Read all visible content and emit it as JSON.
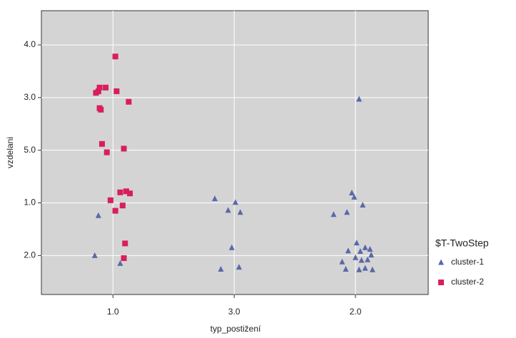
{
  "chart_data": {
    "type": "scatter",
    "x_label": "typ_postižení",
    "y_label": "vzdelani",
    "legend_title": "$T-TwoStep",
    "legend_position": "right",
    "grid": true,
    "xlim": [
      0.41,
      3.6
    ],
    "xticks": [
      {
        "value": 1,
        "label": "1.0"
      },
      {
        "value": 2,
        "label": "3.0"
      },
      {
        "value": 3,
        "label": "2.0"
      }
    ],
    "ylim": [
      0.26,
      5.65
    ],
    "yticks": [
      {
        "value": 1,
        "label": "2.0"
      },
      {
        "value": 2,
        "label": "1.0"
      },
      {
        "value": 3,
        "label": "5.0"
      },
      {
        "value": 4,
        "label": "3.0"
      },
      {
        "value": 5,
        "label": "4.0"
      }
    ],
    "series": [
      {
        "name": "cluster-1",
        "color": "#5a68a8",
        "marker": "triangle",
        "x": [
          0.88,
          0.85,
          1.06,
          1.84,
          1.95,
          2.01,
          2.05,
          1.98,
          1.89,
          2.04,
          3.03,
          2.82,
          2.93,
          2.97,
          2.99,
          3.06,
          3.01,
          2.94,
          3.04,
          3.08,
          3.12,
          3.13,
          2.89,
          3.0,
          3.05,
          3.1,
          3.08,
          2.92,
          3.03,
          3.14
        ],
        "values": [
          1.76,
          1.0,
          0.85,
          2.08,
          1.86,
          2.01,
          1.82,
          1.15,
          0.74,
          0.78,
          3.97,
          1.78,
          1.82,
          2.19,
          2.11,
          1.96,
          1.24,
          1.09,
          1.08,
          1.15,
          1.12,
          1.01,
          0.88,
          0.96,
          0.91,
          0.92,
          0.76,
          0.74,
          0.73,
          0.73
        ]
      },
      {
        "name": "cluster-2",
        "color": "#d81e5b",
        "marker": "square",
        "x": [
          1.02,
          0.88,
          0.89,
          0.94,
          0.86,
          1.03,
          1.13,
          0.89,
          0.9,
          0.91,
          0.95,
          1.09,
          0.98,
          1.06,
          1.11,
          1.14,
          1.02,
          1.08,
          1.1,
          1.09
        ],
        "values": [
          4.78,
          4.12,
          4.19,
          4.19,
          4.09,
          4.12,
          3.92,
          3.8,
          3.77,
          3.12,
          2.96,
          3.03,
          2.05,
          2.2,
          2.22,
          2.18,
          1.85,
          1.95,
          1.23,
          0.95
        ]
      }
    ]
  }
}
